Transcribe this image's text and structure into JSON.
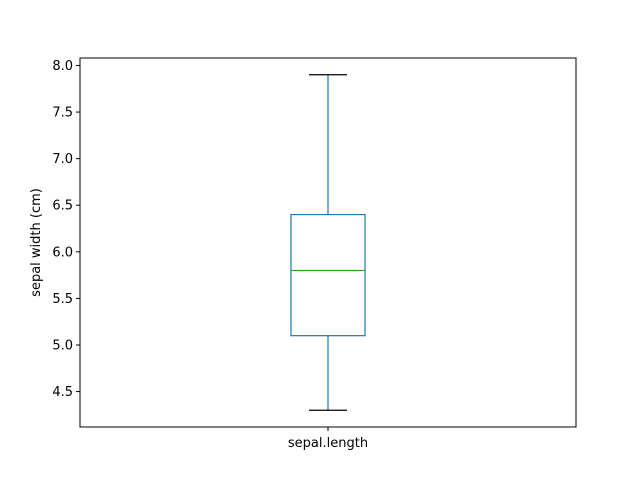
{
  "chart_data": {
    "type": "box",
    "title": "",
    "xlabel": "",
    "ylabel": "sepal width (cm)",
    "ylim": [
      4.12,
      8.08
    ],
    "yticks": [
      "4.5",
      "5.0",
      "5.5",
      "6.0",
      "6.5",
      "7.0",
      "7.5",
      "8.0"
    ],
    "grid": false,
    "legend": "none",
    "categories": [
      "sepal.length"
    ],
    "boxes": [
      {
        "category": "sepal.length",
        "min": 4.3,
        "q1": 5.1,
        "median": 5.8,
        "q3": 6.4,
        "max": 7.9
      }
    ],
    "colors": {
      "box": "#1f77b4",
      "median": "#2ca02c",
      "whisker": "#1f77b4",
      "cap": "#000000",
      "axes": "#000000"
    }
  }
}
